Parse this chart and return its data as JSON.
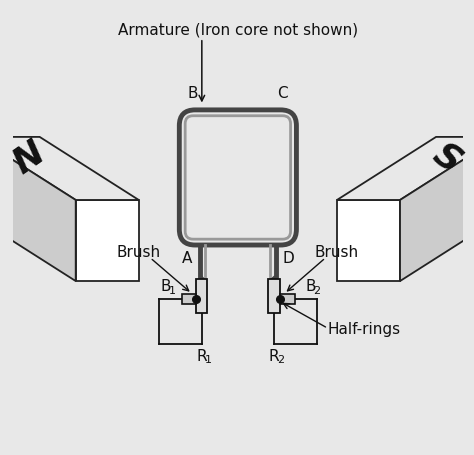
{
  "bg_color": "#e8e8e8",
  "title": "Armature (Iron core not shown)",
  "coil_color": "#666666",
  "magnet_face": "#e8e8e8",
  "magnet_side": "#cccccc",
  "magnet_edge": "#222222",
  "text_color": "#111111",
  "label_B": "B",
  "label_C": "C",
  "label_A": "A",
  "label_D": "D",
  "label_N": "N",
  "label_S": "S",
  "label_brush_left": "Brush",
  "label_brush_right": "Brush",
  "label_halfrings": "Half-rings",
  "figsize": [
    4.74,
    4.56
  ],
  "dpi": 100
}
